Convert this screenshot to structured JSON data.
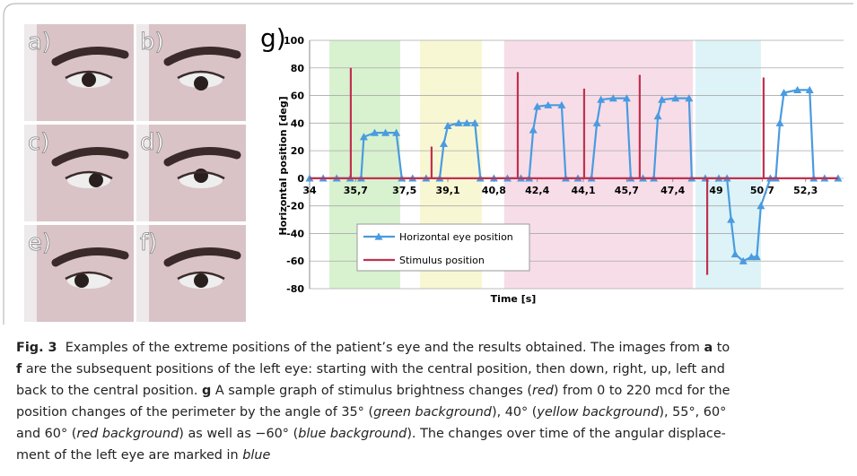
{
  "panels": {
    "labels": [
      "a)",
      "b)",
      "c)",
      "d)",
      "e)",
      "f)"
    ]
  },
  "chart_data": {
    "type": "line",
    "title": "g)",
    "y_label": "Horizontal position [deg]",
    "x_label": "Time [s]",
    "xlim": [
      34,
      53.7
    ],
    "ylim": [
      -80,
      100
    ],
    "xticks": [
      34,
      {
        "value": 35.7,
        "label": "35,7"
      },
      {
        "value": 37.5,
        "label": "37,5"
      },
      {
        "value": 39.1,
        "label": "39,1"
      },
      {
        "value": 40.8,
        "label": "40,8"
      },
      {
        "value": 42.4,
        "label": "42,4"
      },
      {
        "value": 44.1,
        "label": "44,1"
      },
      {
        "value": 45.7,
        "label": "45,7"
      },
      {
        "value": 47.4,
        "label": "47,4"
      },
      49,
      {
        "value": 50.7,
        "label": "50,7"
      },
      {
        "value": 52.3,
        "label": "52,3"
      }
    ],
    "yticks": [
      100,
      80,
      60,
      40,
      20,
      0,
      -20,
      -40,
      -60,
      -80
    ],
    "grid": true,
    "bands": [
      {
        "from": 34.73,
        "to": 37.34,
        "color": "#d8f1cf"
      },
      {
        "from": 38.07,
        "to": 40.36,
        "color": "#f8f7d4"
      },
      {
        "from": 41.18,
        "to": 48.14,
        "color": "#f7dde8"
      },
      {
        "from": 48.24,
        "to": 50.65,
        "color": "#ddf3f7"
      }
    ],
    "series": [
      {
        "name": "Horizontal eye position",
        "color": "#4a9be0",
        "marker": "triangle",
        "x": [
          34,
          34.5,
          35,
          35.5,
          35.9,
          36.0,
          36.4,
          36.8,
          37.2,
          37.4,
          37.8,
          38.3,
          38.8,
          38.95,
          39.1,
          39.5,
          39.8,
          40.1,
          40.3,
          40.8,
          41.3,
          41.8,
          42.1,
          42.25,
          42.4,
          42.8,
          43.3,
          43.45,
          43.9,
          44.4,
          44.6,
          44.75,
          45.2,
          45.7,
          45.85,
          46.3,
          46.7,
          46.85,
          47.0,
          47.5,
          48.0,
          48.1,
          48.6,
          49.1,
          49.4,
          49.55,
          49.7,
          50.0,
          50.3,
          50.5,
          50.65,
          51.0,
          51.2,
          51.35,
          51.5,
          52.0,
          52.45,
          52.6,
          53.0,
          53.5
        ],
        "values": [
          0,
          0,
          0,
          0,
          0,
          30,
          33,
          33,
          33,
          0,
          0,
          0,
          0,
          25,
          38,
          40,
          40,
          40,
          0,
          0,
          0,
          0,
          0,
          35,
          52,
          53,
          53,
          0,
          0,
          0,
          40,
          57,
          58,
          58,
          0,
          0,
          0,
          45,
          57,
          58,
          58,
          0,
          0,
          0,
          0,
          -30,
          -55,
          -60,
          -57,
          -57,
          -20,
          0,
          0,
          40,
          62,
          64,
          64,
          0,
          0,
          0
        ]
      },
      {
        "name": "Stimulus position",
        "color": "#c0314f",
        "x": [
          34,
          35.52,
          35.52,
          35.52,
          38.5,
          38.5,
          38.5,
          41.68,
          41.68,
          41.68,
          44.13,
          44.13,
          44.13,
          46.18,
          46.18,
          46.18,
          48.67,
          48.67,
          48.67,
          50.75,
          50.75,
          50.75,
          53.5
        ],
        "values": [
          0,
          0,
          80,
          0,
          0,
          23,
          0,
          0,
          77,
          0,
          0,
          65,
          0,
          0,
          75,
          0,
          0,
          -70,
          0,
          0,
          73,
          0,
          0
        ]
      }
    ]
  },
  "caption": {
    "lines": [
      [
        {
          "text": "Fig. 3",
          "style": "bold"
        },
        {
          "text": "  Examples of the extreme positions of the patient’s eye and the results obtained. The images from "
        },
        {
          "text": "a",
          "style": "bold"
        },
        {
          "text": " to"
        }
      ],
      [
        {
          "text": "f",
          "style": "bold"
        },
        {
          "text": " are the subsequent positions of the left eye: starting with the central position, then down, right, up, left and"
        }
      ],
      [
        {
          "text": "back to the central position. "
        },
        {
          "text": "g",
          "style": "bold"
        },
        {
          "text": " A sample graph of stimulus brightness changes ("
        },
        {
          "text": "red",
          "style": "italic"
        },
        {
          "text": ") from 0 to 220 mcd for the"
        }
      ],
      [
        {
          "text": "position changes of the perimeter by the angle of 35° ("
        },
        {
          "text": "green background",
          "style": "italic"
        },
        {
          "text": "), 40° ("
        },
        {
          "text": "yellow background",
          "style": "italic"
        },
        {
          "text": "), 55°, 60°"
        }
      ],
      [
        {
          "text": "and 60° ("
        },
        {
          "text": "red background",
          "style": "italic"
        },
        {
          "text": ") as well as −60° ("
        },
        {
          "text": "blue background",
          "style": "italic"
        },
        {
          "text": "). The changes over time of the angular displace-"
        }
      ],
      [
        {
          "text": "ment of the left eye are marked in "
        },
        {
          "text": "blue",
          "style": "italic"
        }
      ]
    ]
  }
}
